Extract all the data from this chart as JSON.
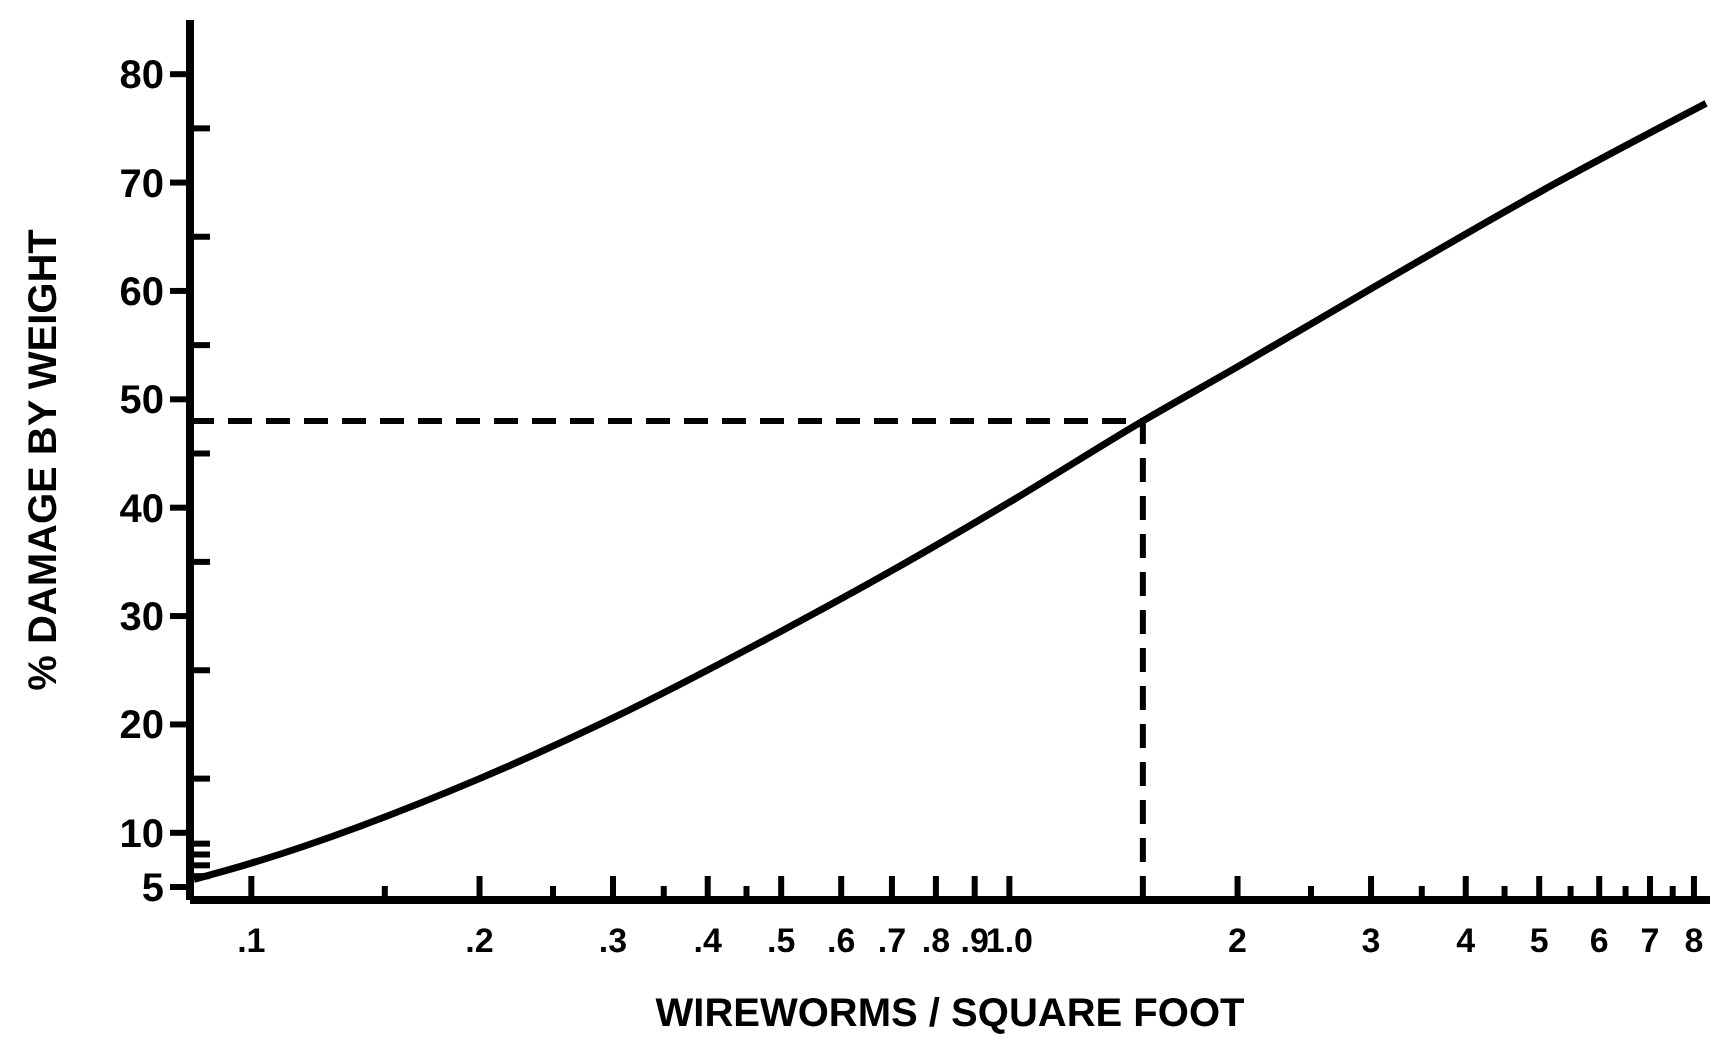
{
  "chart_data": {
    "type": "line",
    "xlabel": "WIREWORMS / SQUARE FOOT",
    "ylabel": "% DAMAGE BY WEIGHT",
    "log": "x",
    "x": [
      0.084,
      0.1,
      0.2,
      0.3,
      0.5,
      0.7,
      1,
      1.5,
      2,
      3,
      5,
      8.3
    ],
    "series": [
      {
        "color": "#000000",
        "values": [
          5.7,
          7.2,
          15,
          20.6,
          28.6,
          34.2,
          40.5,
          48,
          53,
          60.2,
          69.1,
          77.3
        ]
      }
    ],
    "xlim": [
      0.083,
      8.4
    ],
    "xticks": [
      {
        "value": 0.1,
        "label": ".1"
      },
      {
        "value": 0.15,
        "label": null
      },
      {
        "value": 0.2,
        "label": ".2"
      },
      {
        "value": 0.25,
        "label": null
      },
      {
        "value": 0.3,
        "label": ".3"
      },
      {
        "value": 0.35,
        "label": null
      },
      {
        "value": 0.4,
        "label": ".4"
      },
      {
        "value": 0.45,
        "label": null
      },
      {
        "value": 0.5,
        "label": ".5"
      },
      {
        "value": 0.6,
        "label": ".6"
      },
      {
        "value": 0.7,
        "label": ".7"
      },
      {
        "value": 0.8,
        "label": ".8"
      },
      {
        "value": 0.9,
        "label": ".9"
      },
      {
        "value": 1,
        "label": "1.0"
      },
      {
        "value": 2,
        "label": "2"
      },
      {
        "value": 2.5,
        "label": null
      },
      {
        "value": 3,
        "label": "3"
      },
      {
        "value": 3.5,
        "label": null
      },
      {
        "value": 4,
        "label": "4"
      },
      {
        "value": 4.5,
        "label": null
      },
      {
        "value": 5,
        "label": "5"
      },
      {
        "value": 5.5,
        "label": null
      },
      {
        "value": 6,
        "label": "6"
      },
      {
        "value": 6.5,
        "label": null
      },
      {
        "value": 7,
        "label": "7"
      },
      {
        "value": 7.5,
        "label": null
      },
      {
        "value": 8,
        "label": "8"
      }
    ],
    "ylim": [
      3.8,
      85
    ],
    "yticks": [
      5,
      {
        "value": 6,
        "label": null
      },
      {
        "value": 7,
        "label": null
      },
      {
        "value": 8,
        "label": null
      },
      {
        "value": 9,
        "label": null
      },
      10,
      {
        "value": 15,
        "label": null
      },
      20,
      {
        "value": 25,
        "label": null
      },
      30,
      {
        "value": 35,
        "label": null
      },
      40,
      {
        "value": 45,
        "label": null
      },
      50,
      {
        "value": 55,
        "label": null
      },
      60,
      {
        "value": 65,
        "label": null
      },
      70,
      {
        "value": 75,
        "label": null
      },
      80
    ],
    "ref_lines": [
      {
        "axis": "x",
        "value": 1.5,
        "line_style": "dashed"
      },
      {
        "axis": "y",
        "value": 48,
        "line_style": "dashed"
      }
    ],
    "grid": false,
    "marker": "none",
    "line_style": "solid"
  }
}
